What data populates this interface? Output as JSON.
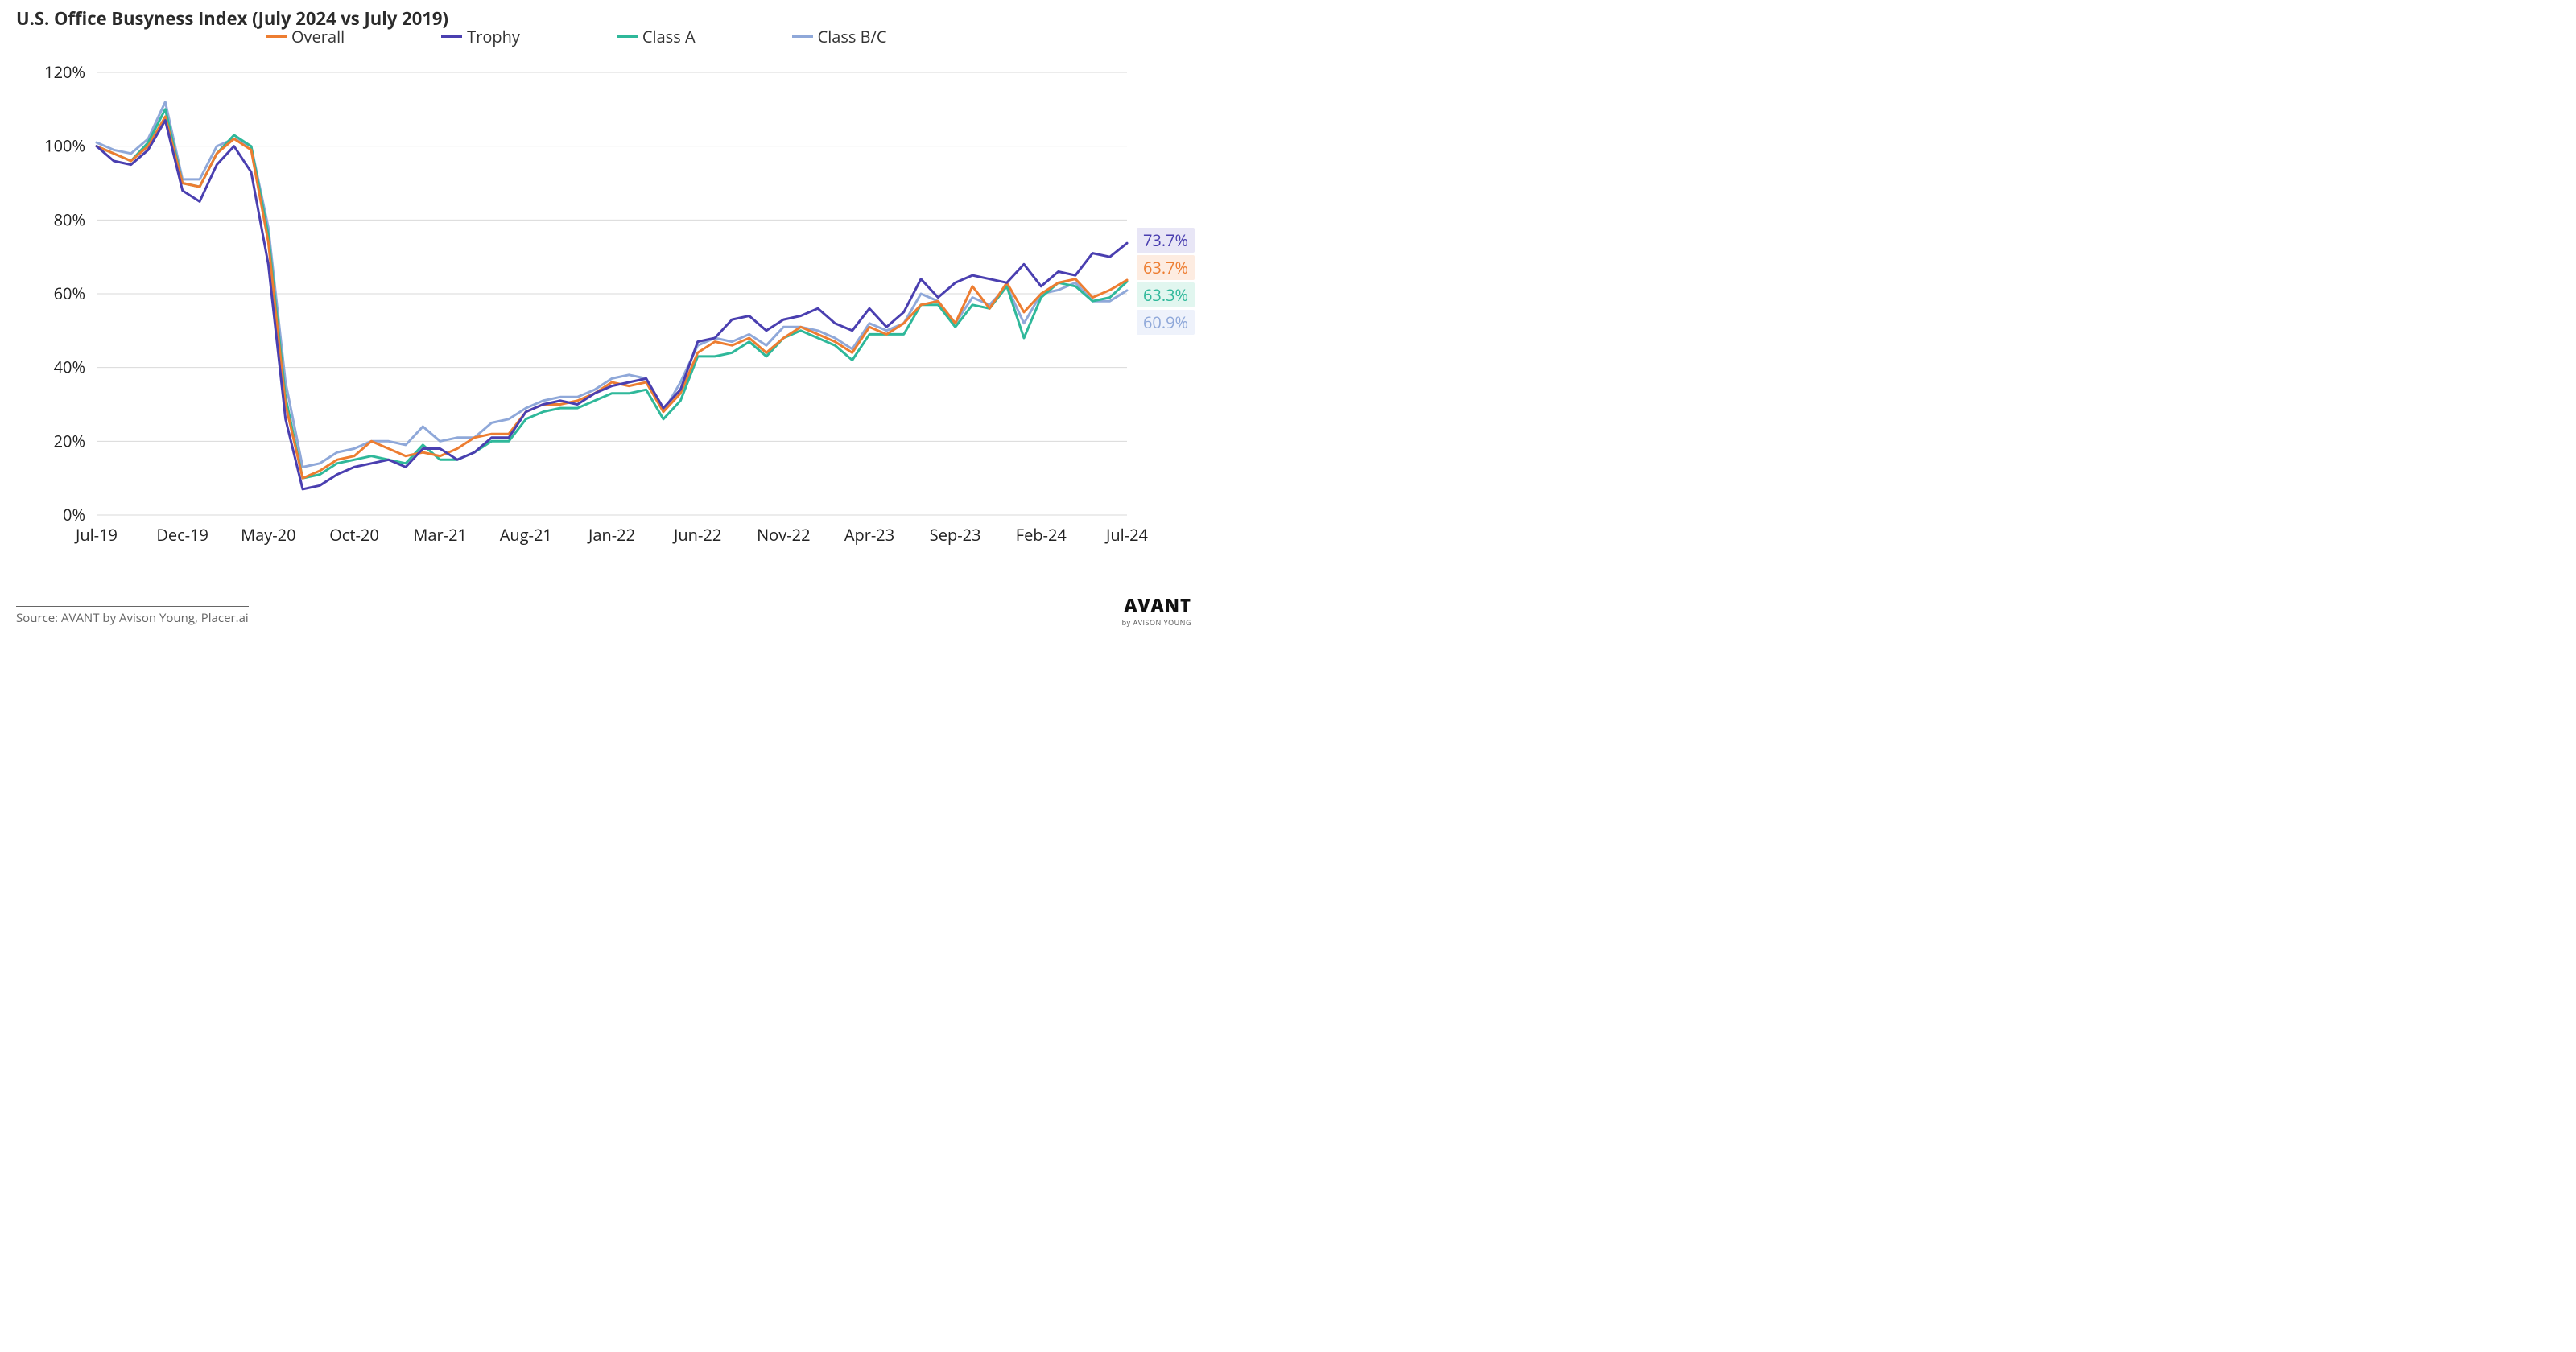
{
  "chart": {
    "type": "line",
    "title": "U.S. Office Busyness Index (July 2024 vs July 2019)",
    "title_fontsize": 22,
    "background_color": "#ffffff",
    "grid_color": "#d9d9d9",
    "line_width": 3,
    "y": {
      "min": 0,
      "max": 120,
      "tick_step": 20,
      "suffix": "%",
      "label_fontsize": 20
    },
    "x": {
      "labels": [
        "Jul-19",
        "Dec-19",
        "May-20",
        "Oct-20",
        "Mar-21",
        "Aug-21",
        "Jan-22",
        "Jun-22",
        "Nov-22",
        "Apr-23",
        "Sep-23",
        "Feb-24",
        "Jul-24"
      ],
      "label_step_months": 5,
      "n_points": 61,
      "label_fontsize": 20
    },
    "legend": {
      "items": [
        "Overall",
        "Trophy",
        "Class A",
        "Class B/C"
      ],
      "position": "top",
      "fontsize": 20
    },
    "series": [
      {
        "name": "Overall",
        "color": "#ed7d31",
        "end_value": 63.7,
        "end_label": "63.7%",
        "end_label_bg": "#fdece1",
        "values": [
          100,
          98,
          96,
          100,
          108,
          90,
          89,
          98,
          102,
          99,
          74,
          30,
          10,
          12,
          15,
          16,
          20,
          18,
          16,
          17,
          16,
          18,
          21,
          22,
          22,
          28,
          30,
          30,
          31,
          33,
          36,
          35,
          36,
          28,
          33,
          44,
          47,
          46,
          48,
          44,
          48,
          51,
          49,
          47,
          44,
          51,
          49,
          52,
          57,
          58,
          52,
          62,
          56,
          63,
          55,
          60,
          63,
          64,
          59,
          61,
          63.7
        ]
      },
      {
        "name": "Trophy",
        "color": "#4a3fb0",
        "end_value": 73.7,
        "end_label": "73.7%",
        "end_label_bg": "#e8e6f6",
        "values": [
          100,
          96,
          95,
          99,
          107,
          88,
          85,
          95,
          100,
          93,
          68,
          26,
          7,
          8,
          11,
          13,
          14,
          15,
          13,
          18,
          18,
          15,
          17,
          21,
          21,
          28,
          30,
          31,
          30,
          33,
          35,
          36,
          37,
          29,
          34,
          47,
          48,
          53,
          54,
          50,
          53,
          54,
          56,
          52,
          50,
          56,
          51,
          55,
          64,
          59,
          63,
          65,
          64,
          63,
          68,
          62,
          66,
          65,
          71,
          70,
          73.7
        ]
      },
      {
        "name": "Class A",
        "color": "#2fb89a",
        "end_value": 63.3,
        "end_label": "63.3%",
        "end_label_bg": "#e1f6ef",
        "values": [
          100,
          98,
          96,
          101,
          110,
          90,
          89,
          98,
          103,
          100,
          76,
          32,
          10,
          11,
          14,
          15,
          16,
          15,
          14,
          19,
          15,
          15,
          17,
          20,
          20,
          26,
          28,
          29,
          29,
          31,
          33,
          33,
          34,
          26,
          31,
          43,
          43,
          44,
          47,
          43,
          48,
          50,
          48,
          46,
          42,
          49,
          49,
          49,
          57,
          57,
          51,
          57,
          56,
          62,
          48,
          59,
          63,
          62,
          58,
          59,
          63.3
        ]
      },
      {
        "name": "Class B/C",
        "color": "#8fa8d9",
        "end_value": 60.9,
        "end_label": "60.9%",
        "end_label_bg": "#eef2fb",
        "values": [
          101,
          99,
          98,
          102,
          112,
          91,
          91,
          100,
          102,
          100,
          78,
          36,
          13,
          14,
          17,
          18,
          20,
          20,
          19,
          24,
          20,
          21,
          21,
          25,
          26,
          29,
          31,
          32,
          32,
          34,
          37,
          38,
          37,
          28,
          36,
          46,
          48,
          47,
          49,
          46,
          51,
          51,
          50,
          48,
          45,
          52,
          50,
          52,
          60,
          58,
          52,
          59,
          57,
          62,
          52,
          60,
          61,
          63,
          58,
          58,
          60.9
        ]
      }
    ],
    "source": "Source: AVANT by Avison Young, Placer.ai",
    "brand": {
      "line1": "AVANT",
      "line2": "by AVISON YOUNG"
    }
  }
}
